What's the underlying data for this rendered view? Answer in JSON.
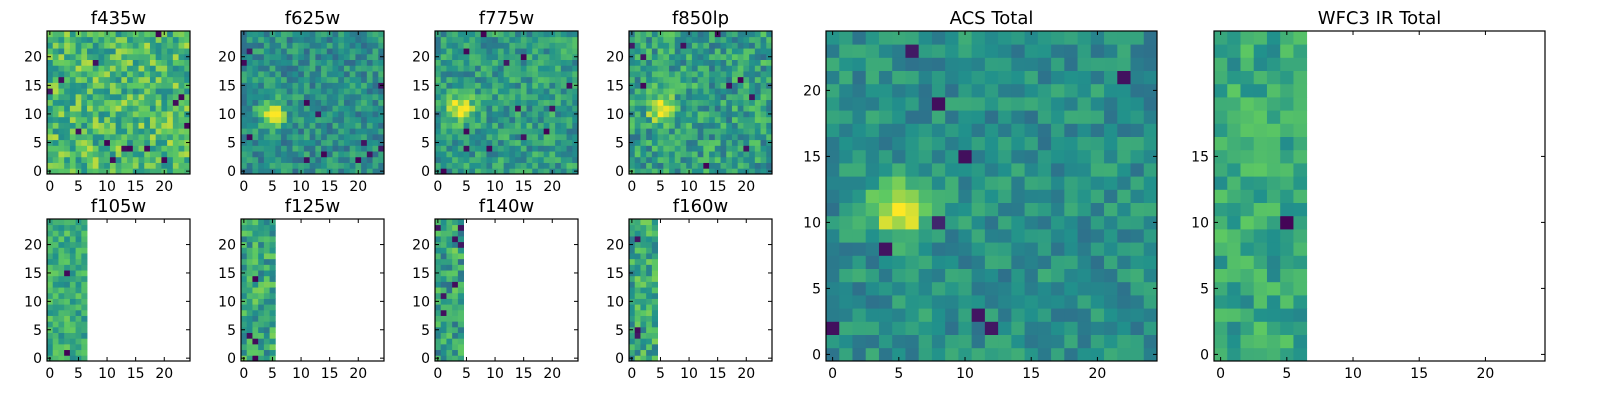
{
  "figure": {
    "colormap": "viridis",
    "colors": {
      "ramp": [
        "#440154",
        "#3b528b",
        "#21918c",
        "#5ec962",
        "#fde725"
      ],
      "frame": "#000000",
      "background": "#ffffff"
    }
  },
  "chart_data": [
    {
      "id": "f435w",
      "type": "heatmap",
      "title": "f435w",
      "grid_size": 25,
      "coverage_columns": 25,
      "seed": 11,
      "mean": 0.68,
      "spread": 0.22,
      "low_spots": 14,
      "bright_spot": null,
      "xlim": [
        -0.5,
        24.5
      ],
      "ylim": [
        -0.5,
        24.5
      ],
      "xticks": [
        0,
        5,
        10,
        15,
        20
      ],
      "yticks": [
        0,
        5,
        10,
        15,
        20
      ],
      "grid": false
    },
    {
      "id": "f625w",
      "type": "heatmap",
      "title": "f625w",
      "grid_size": 25,
      "coverage_columns": 25,
      "seed": 23,
      "mean": 0.5,
      "spread": 0.16,
      "low_spots": 12,
      "bright_spot": {
        "x": 5,
        "y": 10
      },
      "xlim": [
        -0.5,
        24.5
      ],
      "ylim": [
        -0.5,
        24.5
      ],
      "xticks": [
        0,
        5,
        10,
        15,
        20
      ],
      "yticks": [
        0,
        5,
        10,
        15,
        20
      ],
      "grid": false
    },
    {
      "id": "f775w",
      "type": "heatmap",
      "title": "f775w",
      "grid_size": 25,
      "coverage_columns": 25,
      "seed": 37,
      "mean": 0.55,
      "spread": 0.17,
      "low_spots": 13,
      "bright_spot": {
        "x": 4,
        "y": 11
      },
      "xlim": [
        -0.5,
        24.5
      ],
      "ylim": [
        -0.5,
        24.5
      ],
      "xticks": [
        0,
        5,
        10,
        15,
        20
      ],
      "yticks": [
        0,
        5,
        10,
        15,
        20
      ],
      "grid": false
    },
    {
      "id": "f850lp",
      "type": "heatmap",
      "title": "f850lp",
      "grid_size": 25,
      "coverage_columns": 25,
      "seed": 41,
      "mean": 0.56,
      "spread": 0.2,
      "low_spots": 10,
      "bright_spot": {
        "x": 5,
        "y": 11
      },
      "xlim": [
        -0.5,
        24.5
      ],
      "ylim": [
        -0.5,
        24.5
      ],
      "xticks": [
        0,
        5,
        10,
        15,
        20
      ],
      "yticks": [
        0,
        5,
        10,
        15,
        20
      ],
      "grid": false
    },
    {
      "id": "acs_total",
      "type": "heatmap",
      "title": "ACS Total",
      "grid_size": 25,
      "coverage_columns": 25,
      "seed": 53,
      "mean": 0.5,
      "spread": 0.13,
      "low_spots": 9,
      "bright_spot": {
        "x": 5,
        "y": 11
      },
      "xlim": [
        -0.5,
        24.5
      ],
      "ylim": [
        -0.5,
        24.5
      ],
      "xticks": [
        0,
        5,
        10,
        15,
        20
      ],
      "yticks": [
        0,
        5,
        10,
        15,
        20
      ],
      "grid": false
    },
    {
      "id": "f105w",
      "type": "heatmap",
      "title": "f105w",
      "grid_size": 25,
      "coverage_columns": 7,
      "seed": 61,
      "mean": 0.62,
      "spread": 0.16,
      "low_spots": 2,
      "bright_spot": null,
      "xlim": [
        -0.5,
        24.5
      ],
      "ylim": [
        -0.5,
        24.5
      ],
      "xticks": [
        0,
        5,
        10,
        15,
        20
      ],
      "yticks": [
        0,
        5,
        10,
        15,
        20
      ],
      "grid": false
    },
    {
      "id": "f125w",
      "type": "heatmap",
      "title": "f125w",
      "grid_size": 25,
      "coverage_columns": 6,
      "seed": 67,
      "mean": 0.6,
      "spread": 0.2,
      "low_spots": 4,
      "bright_spot": null,
      "xlim": [
        -0.5,
        24.5
      ],
      "ylim": [
        -0.5,
        24.5
      ],
      "xticks": [
        0,
        5,
        10,
        15,
        20
      ],
      "yticks": [
        0,
        5,
        10,
        15,
        20
      ],
      "grid": false
    },
    {
      "id": "f140w",
      "type": "heatmap",
      "title": "f140w",
      "grid_size": 25,
      "coverage_columns": 5,
      "seed": 71,
      "mean": 0.58,
      "spread": 0.22,
      "low_spots": 7,
      "bright_spot": null,
      "xlim": [
        -0.5,
        24.5
      ],
      "ylim": [
        -0.5,
        24.5
      ],
      "xticks": [
        0,
        5,
        10,
        15,
        20
      ],
      "yticks": [
        0,
        5,
        10,
        15,
        20
      ],
      "grid": false
    },
    {
      "id": "f160w",
      "type": "heatmap",
      "title": "f160w",
      "grid_size": 25,
      "coverage_columns": 5,
      "seed": 79,
      "mean": 0.6,
      "spread": 0.2,
      "low_spots": 3,
      "bright_spot": null,
      "xlim": [
        -0.5,
        24.5
      ],
      "ylim": [
        -0.5,
        24.5
      ],
      "xticks": [
        0,
        5,
        10,
        15,
        20
      ],
      "yticks": [
        0,
        5,
        10,
        15,
        20
      ],
      "grid": false
    },
    {
      "id": "wfc3_ir_total",
      "type": "heatmap",
      "title": "WFC3 IR Total",
      "grid_size": 25,
      "coverage_columns": 7,
      "seed": 83,
      "mean": 0.6,
      "spread": 0.15,
      "low_spots": 1,
      "bright_spot": null,
      "xlim": [
        -0.5,
        24.5
      ],
      "ylim": [
        -0.5,
        24.5
      ],
      "xticks": [
        0,
        5,
        10,
        15,
        20
      ],
      "yticks": [
        0,
        5,
        10,
        15
      ],
      "grid": false
    }
  ]
}
